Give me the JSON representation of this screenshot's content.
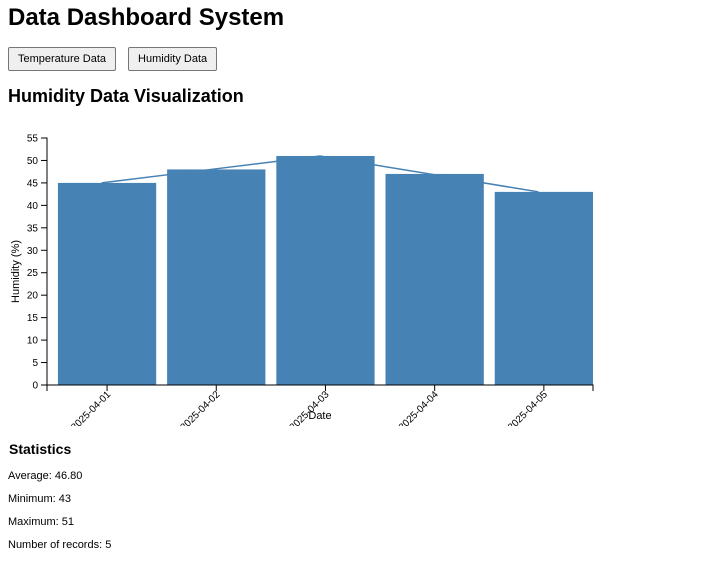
{
  "header": {
    "title": "Data Dashboard System"
  },
  "controls": {
    "temperature_label": "Temperature Data",
    "humidity_label": "Humidity Data"
  },
  "visualization": {
    "title": "Humidity Data Visualization"
  },
  "chart_data": {
    "type": "bar",
    "categories": [
      "2025-04-01",
      "2025-04-02",
      "2025-04-03",
      "2025-04-04",
      "2025-04-05"
    ],
    "values": [
      45,
      48,
      51,
      47,
      43
    ],
    "overlay": "line",
    "xlabel": "Date",
    "ylabel": "Humidity (%)",
    "ylim": [
      0,
      55
    ],
    "yticks": [
      0,
      5,
      10,
      15,
      20,
      25,
      30,
      35,
      40,
      45,
      50,
      55
    ],
    "bar_color": "#4682b4",
    "line_color": "#4682b4",
    "grid": false
  },
  "statistics": {
    "title": "Statistics",
    "average": "Average: 46.80",
    "minimum": "Minimum: 43",
    "maximum": "Maximum: 51",
    "count": "Number of records: 5"
  }
}
